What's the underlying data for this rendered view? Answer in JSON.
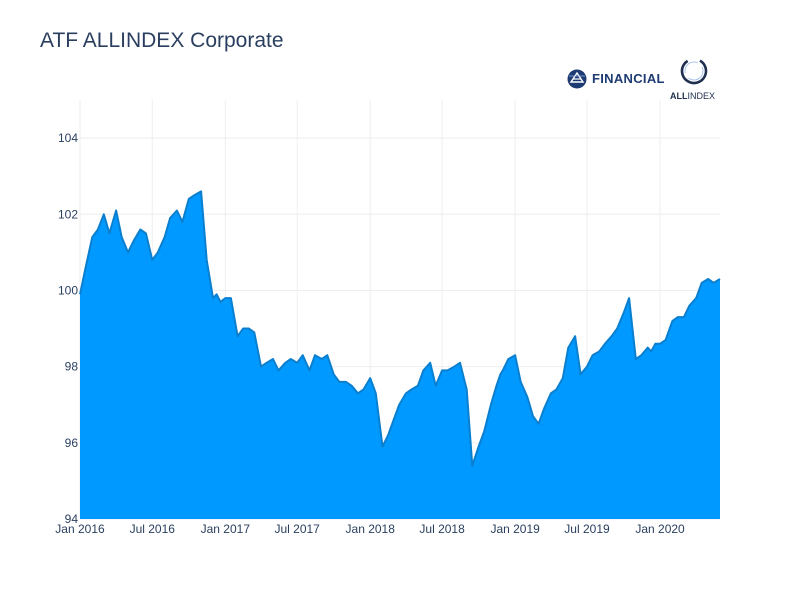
{
  "header": {
    "title": "ATF ALLINDEX Corporate"
  },
  "logos": {
    "financial_text": "FINANCIAL",
    "allindex_bold": "ALL",
    "allindex_rest": "INDEX"
  },
  "colors": {
    "fill": "#0099ff",
    "line": "#0a7fcf",
    "grid": "#eeeeee",
    "text": "#2a3f5f",
    "logo_navy": "#1f3b73"
  },
  "chart_data": {
    "type": "area",
    "title": "ATF ALLINDEX Corporate",
    "xlabel": "",
    "ylabel": "",
    "xlim": [
      "2016-01-01",
      "2020-05-31"
    ],
    "ylim": [
      94,
      105
    ],
    "grid": true,
    "x_ticks": [
      "Jan 2016",
      "Jul 2016",
      "Jan 2017",
      "Jul 2017",
      "Jan 2018",
      "Jul 2018",
      "Jan 2019",
      "Jul 2019",
      "Jan 2020"
    ],
    "y_ticks": [
      "94",
      "96",
      "98",
      "100",
      "102",
      "104"
    ],
    "series": [
      {
        "x": [
          "2016-01-01",
          "2016-01-15",
          "2016-02-01",
          "2016-02-15",
          "2016-03-01",
          "2016-03-15",
          "2016-04-01",
          "2016-04-15",
          "2016-05-01",
          "2016-05-15",
          "2016-06-01",
          "2016-06-15",
          "2016-07-01",
          "2016-07-15",
          "2016-08-01",
          "2016-08-15",
          "2016-09-01",
          "2016-09-15",
          "2016-10-01",
          "2016-10-15",
          "2016-11-01",
          "2016-11-15",
          "2016-12-01",
          "2016-12-10",
          "2016-12-20",
          "2017-01-01",
          "2017-01-15",
          "2017-02-01",
          "2017-02-15",
          "2017-03-01",
          "2017-03-15",
          "2017-04-01",
          "2017-04-15",
          "2017-05-01",
          "2017-05-15",
          "2017-06-01",
          "2017-06-15",
          "2017-07-01",
          "2017-07-15",
          "2017-08-01",
          "2017-08-15",
          "2017-09-01",
          "2017-09-15",
          "2017-10-01",
          "2017-10-15",
          "2017-11-01",
          "2017-11-15",
          "2017-12-01",
          "2017-12-15",
          "2018-01-01",
          "2018-01-15",
          "2018-02-01",
          "2018-02-15",
          "2018-03-01",
          "2018-03-15",
          "2018-04-01",
          "2018-04-15",
          "2018-05-01",
          "2018-05-15",
          "2018-06-01",
          "2018-06-15",
          "2018-07-01",
          "2018-07-15",
          "2018-08-01",
          "2018-08-15",
          "2018-09-01",
          "2018-09-15",
          "2018-10-01",
          "2018-10-15",
          "2018-11-01",
          "2018-11-15",
          "2018-11-25",
          "2018-12-01",
          "2018-12-15",
          "2019-01-01",
          "2019-01-15",
          "2019-02-01",
          "2019-02-15",
          "2019-03-01",
          "2019-03-15",
          "2019-04-01",
          "2019-04-15",
          "2019-05-01",
          "2019-05-15",
          "2019-06-01",
          "2019-06-15",
          "2019-07-01",
          "2019-07-15",
          "2019-08-01",
          "2019-08-15",
          "2019-09-01",
          "2019-09-15",
          "2019-10-01",
          "2019-10-15",
          "2019-11-01",
          "2019-11-15",
          "2019-12-01",
          "2019-12-10",
          "2019-12-20",
          "2020-01-01",
          "2020-01-15",
          "2020-02-01",
          "2020-02-15",
          "2020-03-01",
          "2020-03-15",
          "2020-04-01",
          "2020-04-15",
          "2020-05-01",
          "2020-05-15",
          "2020-05-31"
        ],
        "values": [
          99.9,
          100.6,
          101.4,
          101.6,
          102.0,
          101.5,
          102.1,
          101.4,
          101.0,
          101.3,
          101.6,
          101.5,
          100.8,
          101.0,
          101.4,
          101.9,
          102.1,
          101.8,
          102.4,
          102.5,
          102.6,
          100.8,
          99.8,
          99.9,
          99.7,
          99.8,
          99.8,
          98.8,
          99.0,
          99.0,
          98.9,
          98.0,
          98.1,
          98.2,
          97.9,
          98.1,
          98.2,
          98.1,
          98.3,
          97.9,
          98.3,
          98.2,
          98.3,
          97.8,
          97.6,
          97.6,
          97.5,
          97.3,
          97.4,
          97.7,
          97.3,
          95.9,
          96.2,
          96.6,
          97.0,
          97.3,
          97.4,
          97.5,
          97.9,
          98.1,
          97.5,
          97.9,
          97.9,
          98.0,
          98.1,
          97.4,
          95.4,
          95.9,
          96.3,
          97.0,
          97.5,
          97.8,
          97.9,
          98.2,
          98.3,
          97.6,
          97.2,
          96.7,
          96.5,
          96.9,
          97.3,
          97.4,
          97.7,
          98.5,
          98.8,
          97.8,
          98.0,
          98.3,
          98.4,
          98.6,
          98.8,
          99.0,
          99.4,
          99.8,
          98.2,
          98.3,
          98.5,
          98.4,
          98.6,
          98.6,
          98.7,
          99.2,
          99.3,
          99.3,
          99.6,
          99.8,
          100.2,
          100.3,
          100.2,
          100.3
        ]
      }
    ]
  }
}
